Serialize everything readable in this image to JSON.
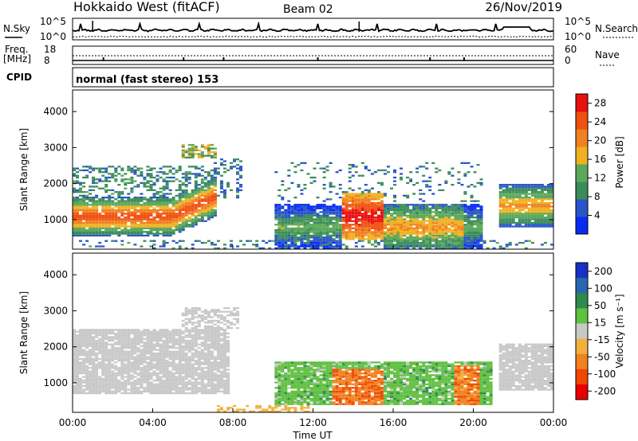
{
  "header": {
    "title": "Hokkaido West (fitACF)",
    "beam": "Beam 02",
    "date": "26/Nov/2019"
  },
  "noise_panel": {
    "left_label": "N.Sky",
    "left_top_tick": "10^5",
    "left_bottom_tick": "10^0",
    "right_label": "N.Search",
    "right_top_tick": "10^5",
    "right_bottom_tick": "10^0"
  },
  "freq_panel": {
    "left_label_1": "Freq.",
    "left_label_2": "[MHz]",
    "left_top_tick": "18",
    "left_bottom_tick": "8",
    "right_label": "Nave",
    "right_top_tick": "60",
    "right_bottom_tick": "0"
  },
  "cpid_panel": {
    "label": "CPID",
    "text": "normal (fast stereo) 153"
  },
  "colors": {
    "power_scale": [
      "#0a2cf0",
      "#2a55c8",
      "#3c8c5a",
      "#5aa85a",
      "#f0b020",
      "#f08020",
      "#f05010",
      "#e81010"
    ],
    "velocity_scale": [
      "#e80000",
      "#f04800",
      "#f08020",
      "#f0b040",
      "#c8c8c8",
      "#60c040",
      "#2e8a4e",
      "#2a66b0",
      "#1830c8"
    ]
  },
  "chart_data": [
    {
      "type": "heatmap",
      "name": "power",
      "x": [
        "00:00",
        "04:00",
        "08:00",
        "12:00",
        "16:00",
        "20:00",
        "00:00"
      ],
      "ylabel": "Slant Range [km]",
      "yticks": [
        "1000",
        "2000",
        "3000",
        "4000"
      ],
      "ylim": [
        180,
        4600
      ],
      "colorbar": {
        "label": "Power [dB]",
        "ticks": [
          "4",
          "8",
          "12",
          "16",
          "20",
          "24",
          "28"
        ],
        "range": [
          0,
          30
        ]
      },
      "regions": [
        {
          "t": [
            0.0,
            7.0
          ],
          "r": [
            800,
            2300
          ],
          "level": "high"
        },
        {
          "t": [
            5.5,
            8.5
          ],
          "r": [
            2500,
            3100
          ],
          "level": "low"
        },
        {
          "t": [
            10.0,
            20.0
          ],
          "r": [
            400,
            1500
          ],
          "level": "high"
        },
        {
          "t": [
            21.5,
            24.0
          ],
          "r": [
            800,
            2000
          ],
          "level": "mid"
        }
      ]
    },
    {
      "type": "heatmap",
      "name": "velocity",
      "x": [
        "00:00",
        "04:00",
        "08:00",
        "12:00",
        "16:00",
        "20:00",
        "00:00"
      ],
      "xlabel": "Time UT",
      "ylabel": "Slant Range [km]",
      "yticks": [
        "1000",
        "2000",
        "3000",
        "4000"
      ],
      "ylim": [
        180,
        4600
      ],
      "colorbar": {
        "label": "Velocity [m s⁻¹]",
        "ticks": [
          "200",
          "100",
          "50",
          "15",
          "-15",
          "-50",
          "-100",
          "-200"
        ],
        "range": [
          -250,
          250
        ]
      },
      "regions": [
        {
          "t": [
            0.0,
            7.5
          ],
          "r": [
            800,
            2400
          ],
          "level": "near-zero"
        },
        {
          "t": [
            10.0,
            21.0
          ],
          "r": [
            400,
            1600
          ],
          "level": "mixed"
        },
        {
          "t": [
            21.5,
            24.0
          ],
          "r": [
            800,
            2100
          ],
          "level": "near-zero"
        }
      ]
    }
  ]
}
